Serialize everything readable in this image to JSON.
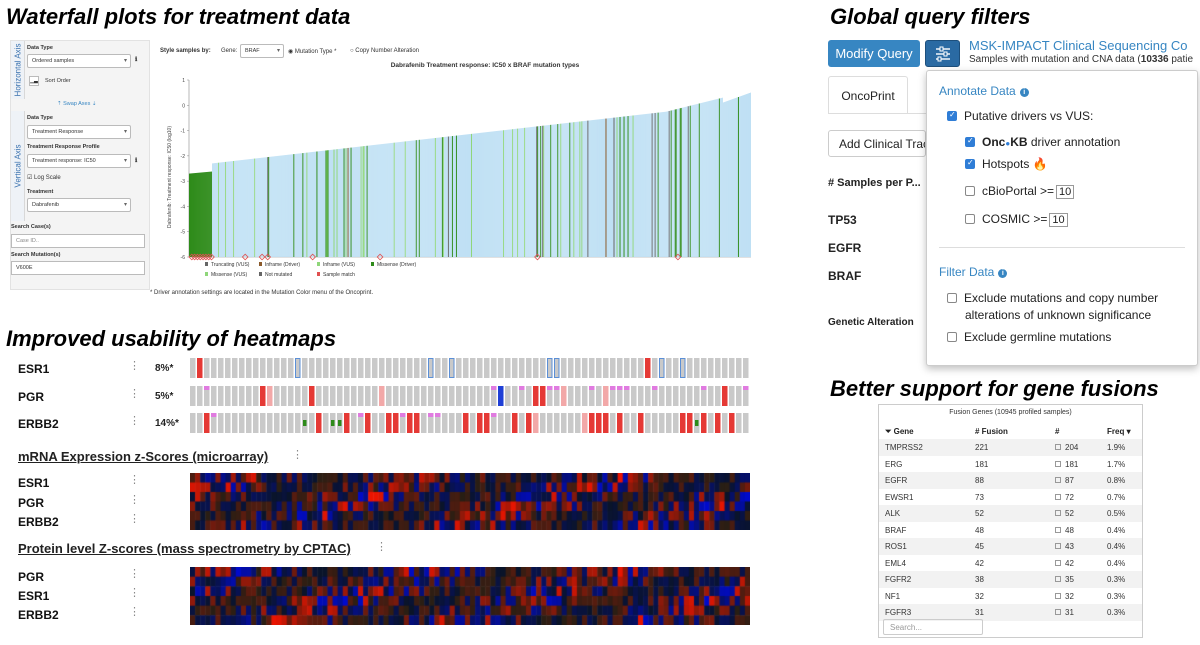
{
  "headings": {
    "waterfall": "Waterfall plots for treatment data",
    "heatmaps": "Improved usability of heatmaps",
    "global": "Global query filters",
    "fusions": "Better support for gene fusions"
  },
  "waterfall": {
    "horizontal_tab": "Horizontal Axis",
    "vertical_tab": "Vertical Axis",
    "h_data_type_label": "Data Type",
    "h_data_type_value": "Ordered samples",
    "sort_order": "Sort Order",
    "swap_axes": "⇡ Swap Axes ⇣",
    "v_data_type_label": "Data Type",
    "v_data_type_value": "Treatment Response",
    "profile_label": "Treatment Response Profile",
    "profile_value": "Treatment response: IC50",
    "log_scale": "Log Scale",
    "treatment_label": "Treatment",
    "treatment_value": "Dabrafenib",
    "search_case_label": "Search Case(s)",
    "search_case_placeholder": "Case ID..",
    "search_mut_label": "Search Mutation(s)",
    "search_mut_value": "V600E",
    "style_by_label": "Style samples by:",
    "gene_label": "Gene:",
    "gene_value": "BRAF",
    "mutation_type": "Mutation Type *",
    "cna": "Copy Number Alteration",
    "footnote": "* Driver annotation settings are located in the Mutation Color menu of the Oncoprint.",
    "legend": [
      "Truncating (VUS)",
      "Inframe (Driver)",
      "Inframe (VUS)",
      "Missense (Driver)",
      "Missense (VUS)",
      "Not mutated",
      "Sample match"
    ],
    "colors": {
      "driver": "#2e8b1a",
      "vus": "#8fd67a",
      "base": "#bfe0f4",
      "inframe": "#8b5a2b",
      "gray": "#666666",
      "match": "#e05050"
    }
  },
  "chart_data": {
    "type": "bar",
    "title": "Dabrafenib Treatment response: IC50 x BRAF mutation types",
    "xlabel": "",
    "ylabel": "Dabrafenib: Treatment response: IC50 (log10)",
    "ylim": [
      -6,
      1
    ],
    "yticks": [
      "1",
      "0",
      "-1",
      "-2",
      "-3",
      "-4",
      "-5",
      "-6"
    ],
    "n_samples": 560,
    "min_value": -6,
    "max_value": 0.5
  },
  "heatmap": {
    "genes": [
      {
        "name": "ESR1",
        "pct": "8%*"
      },
      {
        "name": "PGR",
        "pct": "5%*"
      },
      {
        "name": "ERBB2",
        "pct": "14%*"
      }
    ],
    "mrna_title": "mRNA Expression z-Scores (microarray)",
    "mrna_genes": [
      "ESR1",
      "PGR",
      "ERBB2"
    ],
    "protein_title": "Protein level Z-scores (mass spectrometry by CPTAC)",
    "protein_genes": [
      "PGR",
      "ESR1",
      "ERBB2"
    ]
  },
  "global": {
    "modify_query": "Modify Query",
    "study_title": "MSK-IMPACT Clinical Sequencing Co",
    "study_sub_prefix": "Samples with mutation and CNA data (",
    "study_sub_count": "10336",
    "study_sub_suffix": " patie",
    "tab_oncoprint": "OncoPrint",
    "add_clinical": "Add Clinical Trac",
    "samples_per": "# Samples per P...",
    "genes": [
      "TP53",
      "EGFR",
      "BRAF"
    ],
    "genetic_alteration": "Genetic Alteration",
    "annotate_title": "Annotate Data",
    "putative": "Putative drivers vs VUS:",
    "oncokb_a": "Onc",
    "oncokb_b": "KB",
    "oncokb_rest": " driver annotation",
    "hotspots": "Hotspots",
    "cbioportal": "cBioPortal >=",
    "cbioportal_value": "10",
    "cosmic": "COSMIC >=",
    "cosmic_value": "10",
    "filter_title": "Filter Data",
    "exclude_1": "Exclude mutations and copy number",
    "exclude_1b": "alterations of unknown significance",
    "exclude_2": "Exclude germline mutations"
  },
  "fusion": {
    "title": "Fusion Genes (10945 profiled samples)",
    "headers": [
      "Gene",
      "# Fusion",
      "#",
      "Freq"
    ],
    "rows": [
      [
        "TMPRSS2",
        "221",
        "204",
        "1.9%"
      ],
      [
        "ERG",
        "181",
        "181",
        "1.7%"
      ],
      [
        "EGFR",
        "88",
        "87",
        "0.8%"
      ],
      [
        "EWSR1",
        "73",
        "72",
        "0.7%"
      ],
      [
        "ALK",
        "52",
        "52",
        "0.5%"
      ],
      [
        "BRAF",
        "48",
        "48",
        "0.4%"
      ],
      [
        "ROS1",
        "45",
        "43",
        "0.4%"
      ],
      [
        "EML4",
        "42",
        "42",
        "0.4%"
      ],
      [
        "FGFR2",
        "38",
        "35",
        "0.3%"
      ],
      [
        "NF1",
        "32",
        "32",
        "0.3%"
      ],
      [
        "FGFR3",
        "31",
        "31",
        "0.3%"
      ]
    ],
    "search_placeholder": "Search..."
  }
}
